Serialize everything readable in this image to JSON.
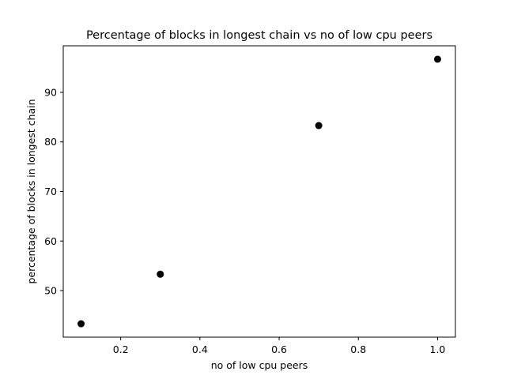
{
  "chart_data": {
    "type": "scatter",
    "title": "Percentage of blocks in longest chain vs no of low cpu peers",
    "xlabel": "no of low cpu peers",
    "ylabel": "percentage of blocks in longest chain",
    "x": [
      0.1,
      0.3,
      0.7,
      1.0
    ],
    "y": [
      43.3,
      53.3,
      83.3,
      96.7
    ],
    "xlim": [
      0.055,
      1.045
    ],
    "ylim": [
      40.6,
      99.4
    ],
    "xticks": [
      0.2,
      0.4,
      0.6,
      0.8,
      1.0
    ],
    "xtick_labels": [
      "0.2",
      "0.4",
      "0.6",
      "0.8",
      "1.0"
    ],
    "yticks": [
      50,
      60,
      70,
      80,
      90
    ],
    "ytick_labels": [
      "50",
      "60",
      "70",
      "80",
      "90"
    ],
    "marker_color": "#000000",
    "grid": false,
    "legend": "none"
  }
}
